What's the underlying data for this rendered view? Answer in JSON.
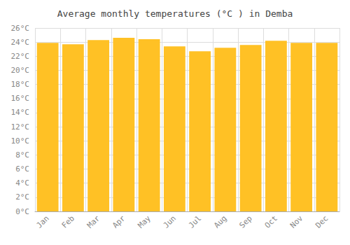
{
  "chart_data": {
    "type": "bar",
    "title": "Average monthly temperatures (°C ) in Demba",
    "categories": [
      "Jan",
      "Feb",
      "Mar",
      "Apr",
      "May",
      "Jun",
      "Jul",
      "Aug",
      "Sep",
      "Oct",
      "Nov",
      "Dec"
    ],
    "values": [
      23.9,
      23.7,
      24.3,
      24.6,
      24.4,
      23.4,
      22.7,
      23.2,
      23.6,
      24.2,
      23.9,
      23.9
    ],
    "color": "#FFC125",
    "ylim": [
      0,
      26
    ],
    "yticks": [
      {
        "value": 0,
        "label": "0°C"
      },
      {
        "value": 2,
        "label": "2°C"
      },
      {
        "value": 4,
        "label": "4°C"
      },
      {
        "value": 6,
        "label": "6°C"
      },
      {
        "value": 8,
        "label": "8°C"
      },
      {
        "value": 10,
        "label": "10°C"
      },
      {
        "value": 12,
        "label": "12°C"
      },
      {
        "value": 14,
        "label": "14°C"
      },
      {
        "value": 16,
        "label": "16°C"
      },
      {
        "value": 18,
        "label": "18°C"
      },
      {
        "value": 20,
        "label": "20°C"
      },
      {
        "value": 22,
        "label": "22°C"
      },
      {
        "value": 24,
        "label": "24°C"
      },
      {
        "value": 26,
        "label": "26°C"
      }
    ],
    "grid": true
  }
}
